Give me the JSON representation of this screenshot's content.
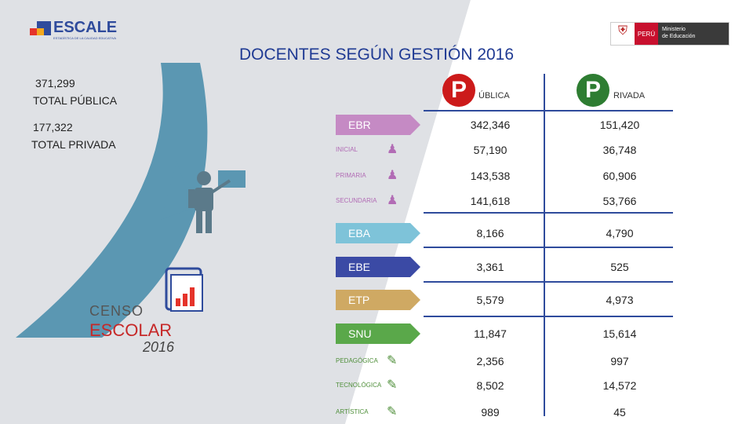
{
  "header": {
    "escale_logo": "ESCALE",
    "escale_tagline": "ESTADÍSTICA DE LA CALIDAD EDUCATIVA",
    "minedu_peru": "PERÚ",
    "minedu_name_1": "Ministerio",
    "minedu_name_2": "de Educación"
  },
  "title": "DOCENTES SEGÚN GESTIÓN 2016",
  "totals": {
    "publica_value": "371,299",
    "publica_label": "TOTAL PÚBLICA",
    "privada_value": "177,322",
    "privada_label": "TOTAL PRIVADA"
  },
  "columns": {
    "publica_letter": "P",
    "publica_suffix": "ÚBLICA",
    "privada_letter": "P",
    "privada_suffix": "RIVADA",
    "publica_color": "#cc1a1a",
    "privada_color": "#2e7d32"
  },
  "rows": [
    {
      "label": "EBR",
      "publica": "342,346",
      "privada": "151,420",
      "kind": "arrow",
      "color": "#c58ac4"
    },
    {
      "label": "INICIAL",
      "publica": "57,190",
      "privada": "36,748",
      "kind": "sub",
      "color": "#b26cb5"
    },
    {
      "label": "PRIMARIA",
      "publica": "143,538",
      "privada": "60,906",
      "kind": "sub",
      "color": "#b26cb5"
    },
    {
      "label": "SECUNDARIA",
      "publica": "141,618",
      "privada": "53,766",
      "kind": "sub",
      "color": "#b26cb5"
    },
    {
      "label": "EBA",
      "publica": "8,166",
      "privada": "4,790",
      "kind": "arrow",
      "color": "#7ec3d9"
    },
    {
      "label": "EBE",
      "publica": "3,361",
      "privada": "525",
      "kind": "arrow",
      "color": "#3b4aa5"
    },
    {
      "label": "ETP",
      "publica": "5,579",
      "privada": "4,973",
      "kind": "arrow",
      "color": "#cfa963"
    },
    {
      "label": "SNU",
      "publica": "11,847",
      "privada": "15,614",
      "kind": "arrow",
      "color": "#5aa84a"
    },
    {
      "label": "PEDAGÓGICA",
      "publica": "2,356",
      "privada": "997",
      "kind": "sub",
      "color": "#4f8f3a"
    },
    {
      "label": "TECNOLÓGICA",
      "publica": "8,502",
      "privada": "14,572",
      "kind": "sub",
      "color": "#4f8f3a"
    },
    {
      "label": "ARTÍSTICA",
      "publica": "989",
      "privada": "45",
      "kind": "sub",
      "color": "#4f8f3a"
    }
  ],
  "censo": {
    "line1": "CENSO",
    "line2": "ESCOLAR",
    "line3": "2016"
  }
}
